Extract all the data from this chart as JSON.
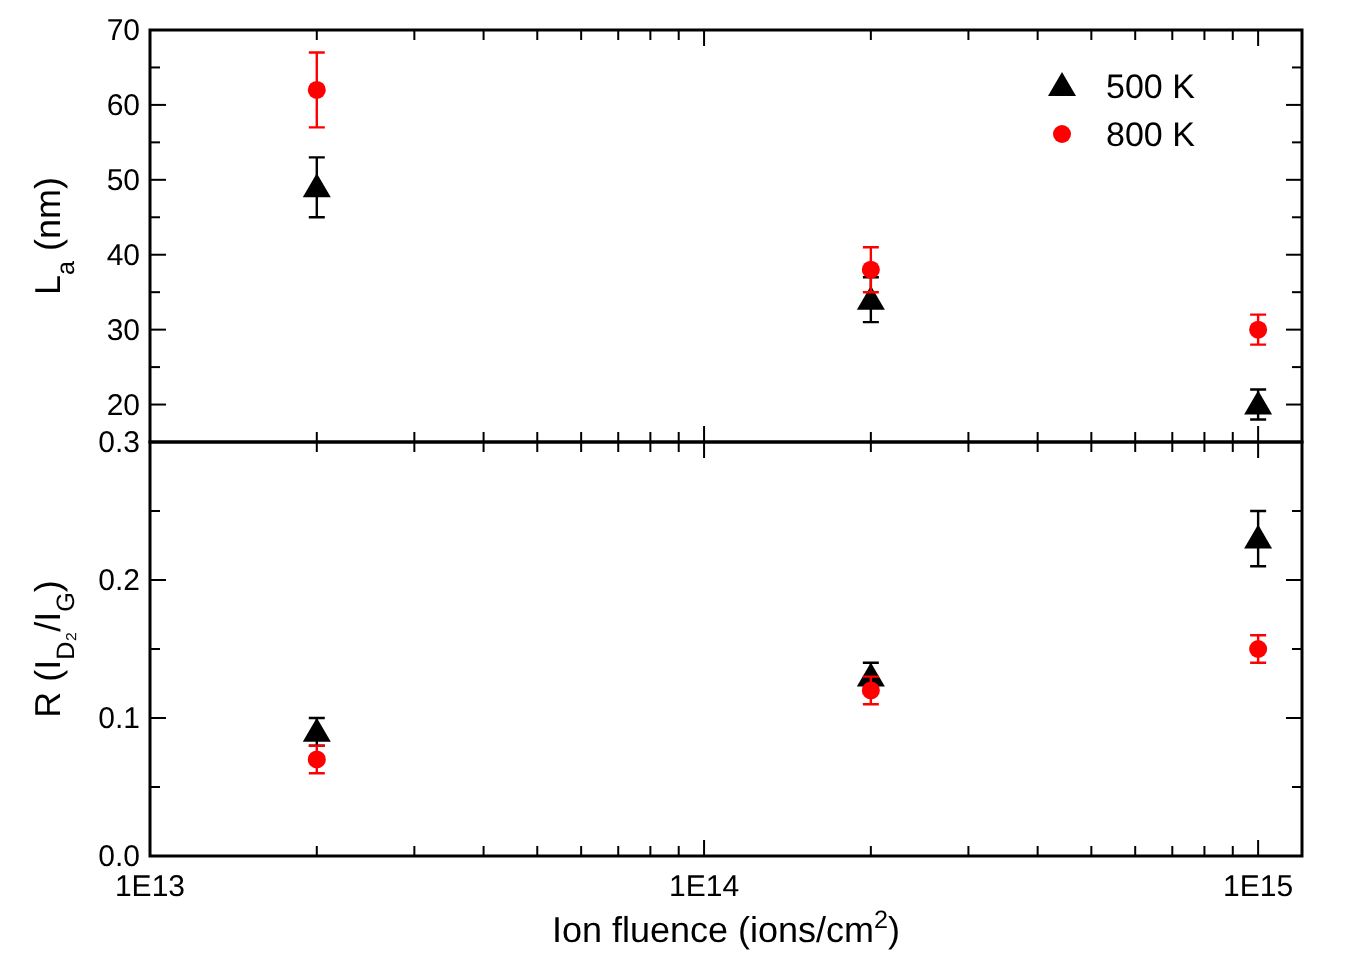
{
  "chart_data": [
    {
      "type": "scatter",
      "ylabel": "L$_{a}$ (nm)",
      "x": [
        20000000000000.0,
        200000000000000.0,
        1000000000000000.0
      ],
      "log": "x",
      "xlim": [
        10000000000000.0,
        1200000000000000.0
      ],
      "ylim": [
        15,
        70
      ],
      "xticks": [
        {
          "value": 10000000000000.0,
          "label": null
        },
        {
          "value": 20000000000000.0,
          "label": null
        },
        {
          "value": 30000000000000.0,
          "label": null
        },
        {
          "value": 40000000000000.0,
          "label": null
        },
        {
          "value": 50000000000000.0,
          "label": null
        },
        {
          "value": 60000000000000.0,
          "label": null
        },
        {
          "value": 70000000000000.0,
          "label": null
        },
        {
          "value": 80000000000000.0,
          "label": null
        },
        {
          "value": 90000000000000.0,
          "label": null
        },
        {
          "value": 100000000000000.0,
          "label": null
        },
        {
          "value": 200000000000000.0,
          "label": null
        },
        {
          "value": 300000000000000.0,
          "label": null
        },
        {
          "value": 400000000000000.0,
          "label": null
        },
        {
          "value": 500000000000000.0,
          "label": null
        },
        {
          "value": 600000000000000.0,
          "label": null
        },
        {
          "value": 700000000000000.0,
          "label": null
        },
        {
          "value": 800000000000000.0,
          "label": null
        },
        {
          "value": 900000000000000.0,
          "label": null
        },
        {
          "value": 1000000000000000.0,
          "label": null
        }
      ],
      "yticks": [
        20,
        {
          "value": 25,
          "label": null
        },
        30,
        {
          "value": 35,
          "label": null
        },
        40,
        {
          "value": 45,
          "label": null
        },
        50,
        {
          "value": 55,
          "label": null
        },
        60,
        {
          "value": 65,
          "label": null
        },
        70
      ],
      "tick_labels": "y",
      "grid": false,
      "legend": "top right",
      "series": [
        {
          "name": "500 K",
          "color": "#000000",
          "marker": "triangle",
          "values": [
            49,
            34,
            20
          ],
          "errors": [
            4,
            3,
            2
          ]
        },
        {
          "name": "800 K",
          "color": "#ff0000",
          "marker": "circle",
          "values": [
            62,
            38,
            30
          ],
          "errors": [
            5,
            3,
            2
          ]
        }
      ]
    },
    {
      "type": "scatter",
      "ylabel": "R (I$_{D₂}$/I$_{G}$)",
      "xlabel": "Ion fluence (ions/cm$^{2}$)",
      "x": [
        20000000000000.0,
        200000000000000.0,
        1000000000000000.0
      ],
      "log": "x",
      "xlim": [
        10000000000000.0,
        1200000000000000.0
      ],
      "ylim": [
        0,
        0.3
      ],
      "xticks": [
        {
          "value": 10000000000000.0,
          "label": "1E13"
        },
        {
          "value": 20000000000000.0,
          "label": null
        },
        {
          "value": 30000000000000.0,
          "label": null
        },
        {
          "value": 40000000000000.0,
          "label": null
        },
        {
          "value": 50000000000000.0,
          "label": null
        },
        {
          "value": 60000000000000.0,
          "label": null
        },
        {
          "value": 70000000000000.0,
          "label": null
        },
        {
          "value": 80000000000000.0,
          "label": null
        },
        {
          "value": 90000000000000.0,
          "label": null
        },
        {
          "value": 100000000000000.0,
          "label": "1E14"
        },
        {
          "value": 200000000000000.0,
          "label": null
        },
        {
          "value": 300000000000000.0,
          "label": null
        },
        {
          "value": 400000000000000.0,
          "label": null
        },
        {
          "value": 500000000000000.0,
          "label": null
        },
        {
          "value": 600000000000000.0,
          "label": null
        },
        {
          "value": 700000000000000.0,
          "label": null
        },
        {
          "value": 800000000000000.0,
          "label": null
        },
        {
          "value": 900000000000000.0,
          "label": null
        },
        {
          "value": 1000000000000000.0,
          "label": "1E15"
        }
      ],
      "yticks": [
        {
          "value": 0,
          "label": "0.0"
        },
        {
          "value": 0.05,
          "label": null
        },
        {
          "value": 0.1,
          "label": "0.1"
        },
        {
          "value": 0.15,
          "label": null
        },
        {
          "value": 0.2,
          "label": "0.2"
        },
        {
          "value": 0.25,
          "label": null
        },
        {
          "value": 0.3,
          "label": "0.3"
        }
      ],
      "grid": false,
      "legend": false,
      "series": [
        {
          "color": "#000000",
          "marker": "triangle",
          "values": [
            0.09,
            0.13,
            0.23
          ],
          "errors": [
            0.01,
            0.01,
            0.02
          ]
        },
        {
          "color": "#ff0000",
          "marker": "circle",
          "values": [
            0.07,
            0.12,
            0.15
          ],
          "errors": [
            0.01,
            0.01,
            0.01
          ]
        }
      ]
    }
  ]
}
